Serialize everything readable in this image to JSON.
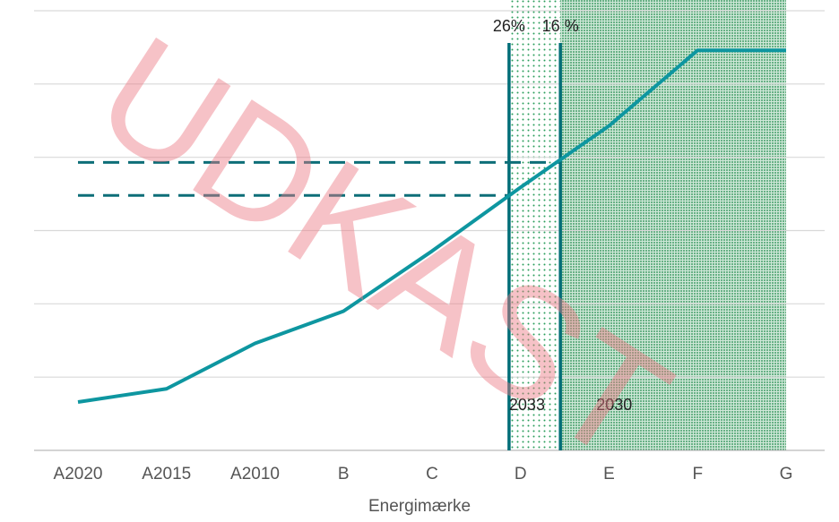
{
  "chart_data": {
    "type": "line",
    "x_label": "Energimærke",
    "watermark": "UDKAST",
    "categories": [
      "A2020",
      "A2015",
      "A2010",
      "B",
      "C",
      "D",
      "E",
      "F",
      "G"
    ],
    "series": [
      {
        "name": null,
        "color": "#0e96a0",
        "values": [
          0.66,
          0.84,
          1.46,
          1.9,
          2.72,
          3.59,
          4.43,
          5.46,
          5.46
        ]
      }
    ],
    "ylim": [
      0,
      6
    ],
    "yticks": [
      0,
      1,
      2,
      3,
      4,
      5,
      6
    ],
    "grid": true,
    "thresholds": [
      {
        "label": "26%",
        "year": "2033",
        "x": 4.87,
        "y": 3.48,
        "pattern": "sparse"
      },
      {
        "label": "16 %",
        "year": "2030",
        "x": 5.45,
        "y": 3.93,
        "pattern": "dense"
      }
    ]
  }
}
